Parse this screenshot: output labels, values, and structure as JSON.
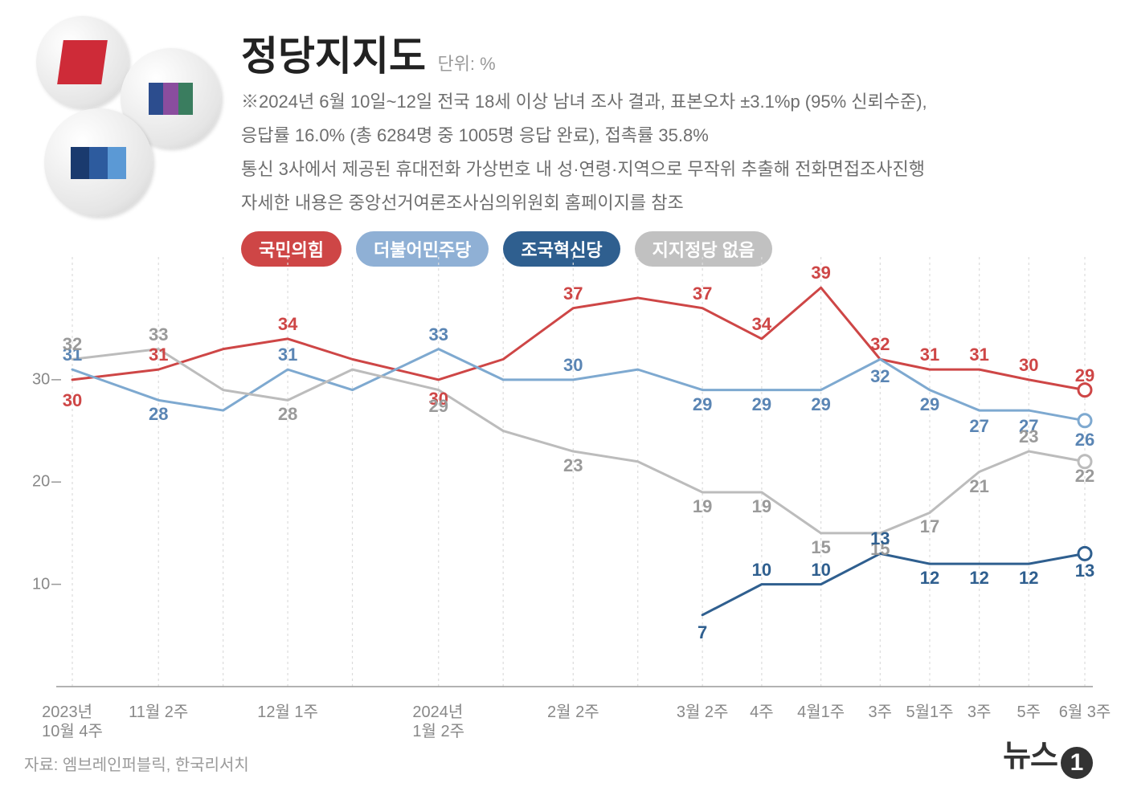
{
  "title": "정당지지도",
  "unit": "단위: %",
  "desc": [
    "※2024년 6월 10일~12일 전국 18세 이상 남녀 조사 결과, 표본오차 ±3.1%p (95% 신뢰수준),",
    "응답률 16.0% (총 6284명 중 1005명 응답 완료), 접촉률 35.8%",
    "통신 3사에서 제공된 휴대전화 가상번호 내 성·연령·지역으로 무작위 추출해 전화면접조사진행",
    "자세한 내용은 중앙선거여론조사심의위원회 홈페이지를 참조"
  ],
  "legend": [
    {
      "label": "국민의힘",
      "color": "#ce4646"
    },
    {
      "label": "더불어민주당",
      "color": "#8fb0d5"
    },
    {
      "label": "조국혁신당",
      "color": "#2f5f8f"
    },
    {
      "label": "지지정당 없음",
      "color": "#c1c1c1"
    }
  ],
  "chart": {
    "type": "line",
    "ylim": [
      0,
      42
    ],
    "yticks": [
      10,
      20,
      30
    ],
    "x_categories": [
      "2023년\n10월 4주",
      "11월 2주",
      "",
      "12월 1주",
      "",
      "2024년\n1월 2주",
      "",
      "2월 2주",
      "",
      "3월 2주",
      "4주",
      "4월1주",
      "3주",
      "5월1주",
      "3주",
      "5주",
      "6월 3주"
    ],
    "x_positions_pct": [
      6,
      14,
      20,
      26,
      32,
      40,
      46,
      52.5,
      58.5,
      64.5,
      70,
      75.5,
      81,
      85.6,
      90.2,
      94.8,
      100
    ],
    "grid_color": "#dcdcdc",
    "axis_color": "#999999",
    "background_color": "#ffffff",
    "series": [
      {
        "name": "국민의힘",
        "color": "#ce4646",
        "line_width": 3,
        "values": [
          30,
          31,
          33,
          34,
          32,
          30,
          32,
          37,
          38,
          37,
          34,
          39,
          32,
          31,
          31,
          30,
          29
        ],
        "labels": [
          "30",
          "31",
          "",
          "34",
          "",
          "30",
          "",
          "37",
          "",
          "37",
          "34",
          "39",
          "32",
          "31",
          "31",
          "30",
          "29"
        ],
        "label_dy": [
          26,
          -18,
          0,
          -18,
          0,
          24,
          0,
          -18,
          0,
          -18,
          -18,
          -18,
          -18,
          -18,
          -18,
          -18,
          -18
        ],
        "end_marker": true
      },
      {
        "name": "더불어민주당",
        "color": "#7ea9d0",
        "text_color": "#5a85b4",
        "line_width": 3,
        "values": [
          31,
          28,
          27,
          31,
          29,
          33,
          30,
          30,
          31,
          29,
          29,
          29,
          32,
          29,
          27,
          27,
          26
        ],
        "labels": [
          "31",
          "28",
          "",
          "31",
          "",
          "33",
          "",
          "30",
          "",
          "29",
          "29",
          "29",
          "32",
          "29",
          "27",
          "27",
          "26"
        ],
        "label_dy": [
          -18,
          18,
          0,
          -18,
          0,
          -18,
          0,
          -18,
          0,
          18,
          18,
          18,
          22,
          18,
          20,
          20,
          24
        ],
        "end_marker": true
      },
      {
        "name": "지지정당 없음",
        "color": "#bcbcbc",
        "text_color": "#9a9a9a",
        "line_width": 3,
        "values": [
          32,
          33,
          29,
          28,
          31,
          29,
          25,
          23,
          22,
          19,
          19,
          15,
          15,
          17,
          21,
          23,
          22
        ],
        "labels": [
          "32",
          "33",
          "",
          "28",
          "",
          "29",
          "",
          "23",
          "",
          "19",
          "19",
          "15",
          "15",
          "17",
          "21",
          "23",
          "22"
        ],
        "label_dy": [
          -18,
          -18,
          0,
          18,
          0,
          20,
          0,
          18,
          0,
          18,
          18,
          18,
          20,
          18,
          18,
          -18,
          18
        ],
        "end_marker": true
      },
      {
        "name": "조국혁신당",
        "color": "#2f5f8f",
        "line_width": 3,
        "start_index": 9,
        "values": [
          null,
          null,
          null,
          null,
          null,
          null,
          null,
          null,
          null,
          7,
          10,
          10,
          13,
          12,
          12,
          12,
          13
        ],
        "labels": [
          "",
          "",
          "",
          "",
          "",
          "",
          "",
          "",
          "",
          "7",
          "10",
          "10",
          "13",
          "12",
          "12",
          "12",
          "13"
        ],
        "label_dy": [
          0,
          0,
          0,
          0,
          0,
          0,
          0,
          0,
          0,
          22,
          -18,
          -18,
          -18,
          18,
          18,
          18,
          22
        ],
        "end_marker": true
      }
    ]
  },
  "source": "자료: 엠브레인퍼블릭, 한국리서치",
  "brand": {
    "text": "뉴스",
    "num": "1"
  }
}
